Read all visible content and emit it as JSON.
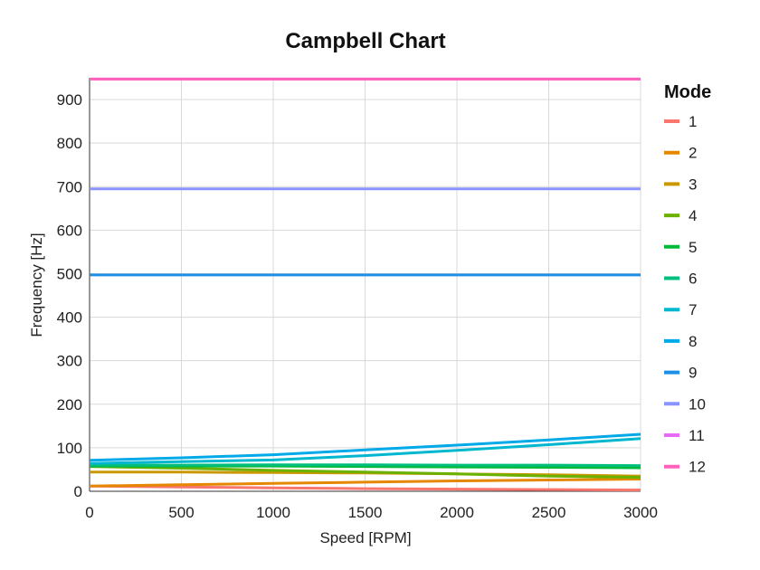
{
  "chart_data": {
    "type": "line",
    "title": "Campbell Chart",
    "xlabel": "Speed [RPM]",
    "ylabel": "Frequency [Hz]",
    "xlim": [
      0,
      3000
    ],
    "ylim": [
      0,
      950
    ],
    "xticks": [
      0,
      500,
      1000,
      1500,
      2000,
      2500,
      3000
    ],
    "yticks": [
      0,
      100,
      200,
      300,
      400,
      500,
      600,
      700,
      800,
      900
    ],
    "grid": true,
    "legend_title": "Mode",
    "legend_position": "right",
    "x": [
      0,
      500,
      1000,
      1500,
      2000,
      2500,
      3000
    ],
    "series": [
      {
        "name": "1",
        "color": "#F8766D",
        "values": [
          12,
          10,
          8,
          6,
          5,
          4,
          3
        ]
      },
      {
        "name": "2",
        "color": "#E58700",
        "values": [
          12,
          15,
          18,
          21,
          24,
          26,
          28
        ]
      },
      {
        "name": "3",
        "color": "#C99800",
        "values": [
          44,
          44,
          43,
          42,
          40,
          38,
          35
        ]
      },
      {
        "name": "4",
        "color": "#6BB100",
        "values": [
          57,
          53,
          48,
          44,
          40,
          35,
          32
        ]
      },
      {
        "name": "5",
        "color": "#00BA38",
        "values": [
          58,
          58,
          58,
          57,
          56,
          55,
          54
        ]
      },
      {
        "name": "6",
        "color": "#00BF7D",
        "values": [
          60,
          60,
          61,
          61,
          60,
          60,
          59
        ]
      },
      {
        "name": "7",
        "color": "#00B7CF",
        "values": [
          64,
          68,
          72,
          82,
          94,
          107,
          121
        ]
      },
      {
        "name": "8",
        "color": "#00A9E8",
        "values": [
          71,
          77,
          84,
          95,
          106,
          118,
          131
        ]
      },
      {
        "name": "9",
        "color": "#1F8FE5",
        "values": [
          497,
          497,
          497,
          497,
          497,
          497,
          497
        ]
      },
      {
        "name": "10",
        "color": "#8B93FF",
        "values": [
          695,
          695,
          695,
          695,
          695,
          695,
          695
        ]
      },
      {
        "name": "11",
        "color": "#E76BF3",
        "values": [
          947,
          947,
          947,
          947,
          947,
          947,
          947
        ]
      },
      {
        "name": "12",
        "color": "#FF62BC",
        "values": [
          947,
          947,
          947,
          947,
          947,
          947,
          947
        ]
      }
    ]
  }
}
